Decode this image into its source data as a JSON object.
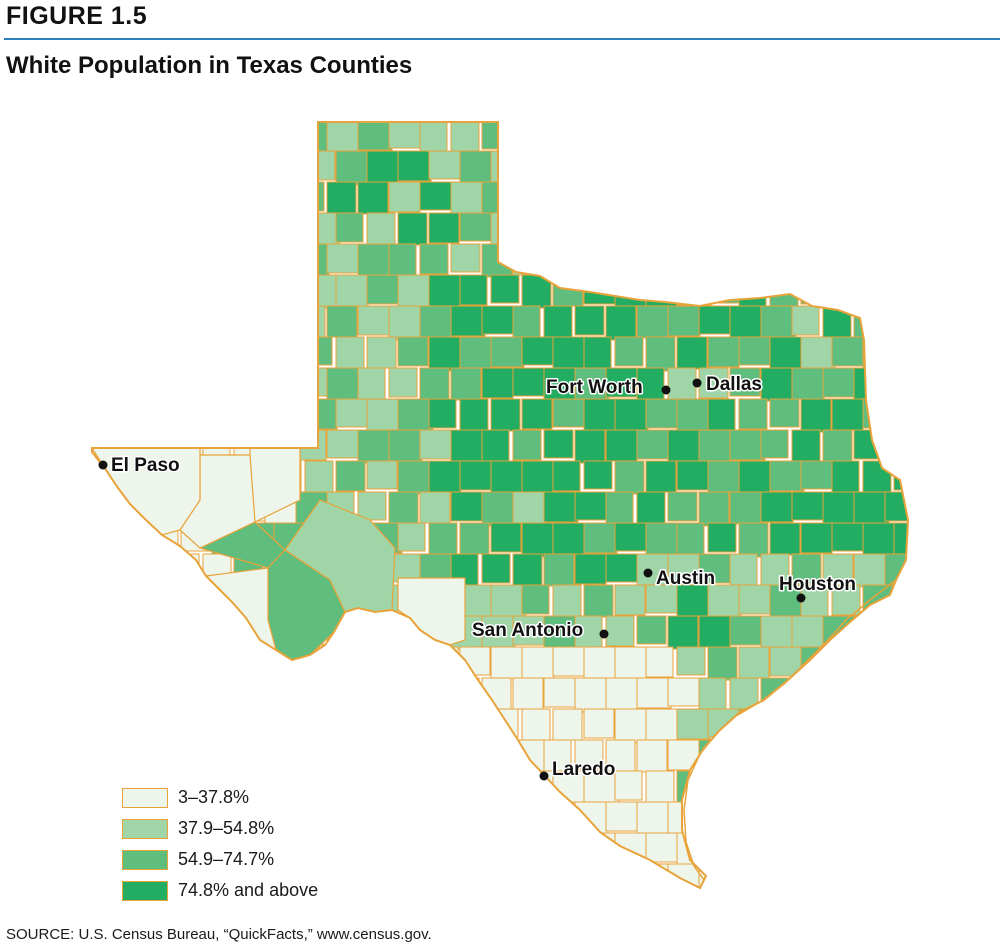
{
  "figure": {
    "label": "FIGURE 1.5",
    "title": "White Population in Texas Counties",
    "source": "SOURCE: U.S. Census Bureau, “QuickFacts,” www.census.gov."
  },
  "colors": {
    "border": "#e8a33a",
    "dot": "#111111",
    "rule": "#2f7fb8"
  },
  "legend": [
    {
      "label": "3–37.8%",
      "color": "#eef5ea"
    },
    {
      "label": "37.9–54.8%",
      "color": "#9fd5a7"
    },
    {
      "label": "54.9–74.7%",
      "color": "#5fbd7e"
    },
    {
      "label": "74.8% and above",
      "color": "#22ad62"
    }
  ],
  "cities": [
    {
      "name": "El Paso"
    },
    {
      "name": "Fort Worth"
    },
    {
      "name": "Dallas"
    },
    {
      "name": "Austin"
    },
    {
      "name": "Houston"
    },
    {
      "name": "San Antonio"
    },
    {
      "name": "Laredo"
    }
  ]
}
